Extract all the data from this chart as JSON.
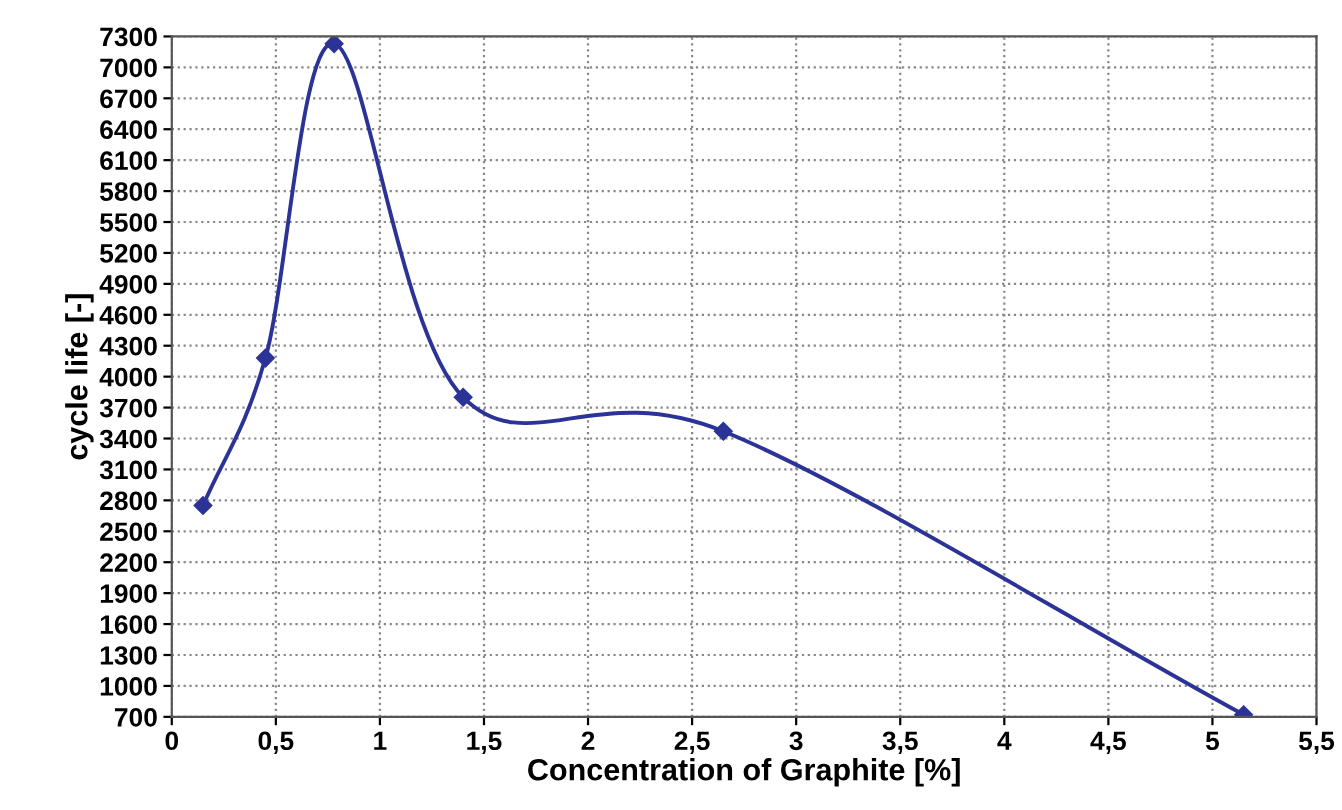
{
  "chart_data": {
    "type": "line",
    "xlabel": "Concentration of Graphite [%]",
    "ylabel": "cycle life [-]",
    "x": [
      0.15,
      0.45,
      0.78,
      1.4,
      2.65,
      5.15
    ],
    "series": [
      {
        "color": "#2b3496",
        "values": [
          2750,
          4180,
          7230,
          3800,
          3470,
          720
        ]
      }
    ],
    "marker": "diamond",
    "line_style": "solid",
    "grid": true,
    "xlim": [
      0,
      5.5
    ],
    "xticks": [
      0,
      {
        "value": 0.5,
        "label": "0,5"
      },
      1,
      {
        "value": 1.5,
        "label": "1,5"
      },
      2,
      {
        "value": 2.5,
        "label": "2,5"
      },
      3,
      {
        "value": 3.5,
        "label": "3,5"
      },
      4,
      {
        "value": 4.5,
        "label": "4,5"
      },
      5,
      {
        "value": 5.5,
        "label": "5,5"
      }
    ],
    "ylim": [
      700,
      7300
    ],
    "yticks": [
      700,
      1000,
      1300,
      1600,
      1900,
      2200,
      2500,
      2800,
      3100,
      3400,
      3700,
      4000,
      4300,
      4600,
      4900,
      5200,
      5500,
      5800,
      6100,
      6400,
      6700,
      7000,
      7300
    ]
  }
}
